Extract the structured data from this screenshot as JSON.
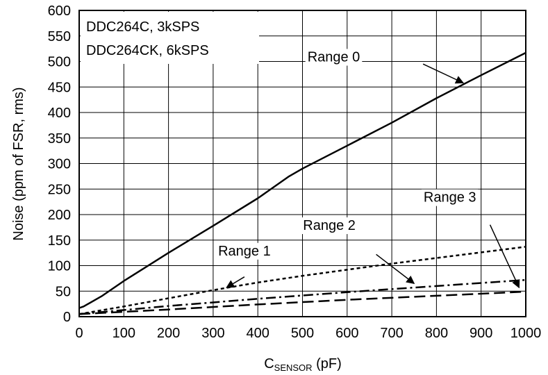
{
  "chart_data": {
    "type": "line",
    "xlabel_main": "C",
    "xlabel_sub": "SENSOR",
    "xlabel_unit": " (pF)",
    "ylabel": "Noise (ppm of FSR, rms)",
    "xlim": [
      0,
      1000
    ],
    "ylim": [
      0,
      600
    ],
    "xticks": [
      0,
      100,
      200,
      300,
      400,
      500,
      600,
      700,
      800,
      900,
      1000
    ],
    "yticks": [
      0,
      50,
      100,
      150,
      200,
      250,
      300,
      350,
      400,
      450,
      500,
      550,
      600
    ],
    "grid": true,
    "notes": [
      "DDC264C, 3kSPS",
      "DDC264CK, 6kSPS"
    ],
    "series": [
      {
        "name": "Range 0",
        "style": "solid",
        "color": "#000000",
        "points": [
          [
            0,
            17
          ],
          [
            10,
            20
          ],
          [
            50,
            40
          ],
          [
            100,
            70
          ],
          [
            200,
            125
          ],
          [
            300,
            178
          ],
          [
            400,
            232
          ],
          [
            470,
            275
          ],
          [
            500,
            290
          ],
          [
            600,
            335
          ],
          [
            700,
            380
          ],
          [
            800,
            428
          ],
          [
            900,
            473
          ],
          [
            1000,
            517
          ]
        ]
      },
      {
        "name": "Range 1",
        "style": "dotted",
        "color": "#000000",
        "points": [
          [
            0,
            5
          ],
          [
            100,
            20
          ],
          [
            200,
            36
          ],
          [
            300,
            52
          ],
          [
            400,
            67
          ],
          [
            500,
            80
          ],
          [
            600,
            92
          ],
          [
            700,
            104
          ],
          [
            800,
            115
          ],
          [
            900,
            126
          ],
          [
            1000,
            137
          ]
        ]
      },
      {
        "name": "Range 2",
        "style": "dashdot",
        "color": "#000000",
        "points": [
          [
            0,
            5
          ],
          [
            200,
            21
          ],
          [
            400,
            35
          ],
          [
            600,
            48
          ],
          [
            800,
            60
          ],
          [
            1000,
            72
          ]
        ]
      },
      {
        "name": "Range 3",
        "style": "dashed",
        "color": "#000000",
        "points": [
          [
            0,
            5
          ],
          [
            200,
            14
          ],
          [
            400,
            24
          ],
          [
            600,
            33
          ],
          [
            800,
            41
          ],
          [
            1000,
            49
          ]
        ]
      }
    ],
    "annotations": [
      {
        "label": "Range 0",
        "series": 0,
        "text_at": [
          570,
          500
        ],
        "arrow_from": [
          770,
          495
        ],
        "arrow_to": [
          860,
          458
        ]
      },
      {
        "label": "Range 1",
        "series": 1,
        "text_at": [
          370,
          120
        ],
        "arrow_from": [
          370,
          78
        ],
        "arrow_to": [
          330,
          57
        ]
      },
      {
        "label": "Range 2",
        "series": 2,
        "text_at": [
          560,
          170
        ],
        "arrow_from": [
          665,
          122
        ],
        "arrow_to": [
          750,
          65
        ]
      },
      {
        "label": "Range 3",
        "series": 3,
        "text_at": [
          830,
          225
        ],
        "arrow_from": [
          920,
          180
        ],
        "arrow_to": [
          985,
          57
        ]
      }
    ]
  }
}
